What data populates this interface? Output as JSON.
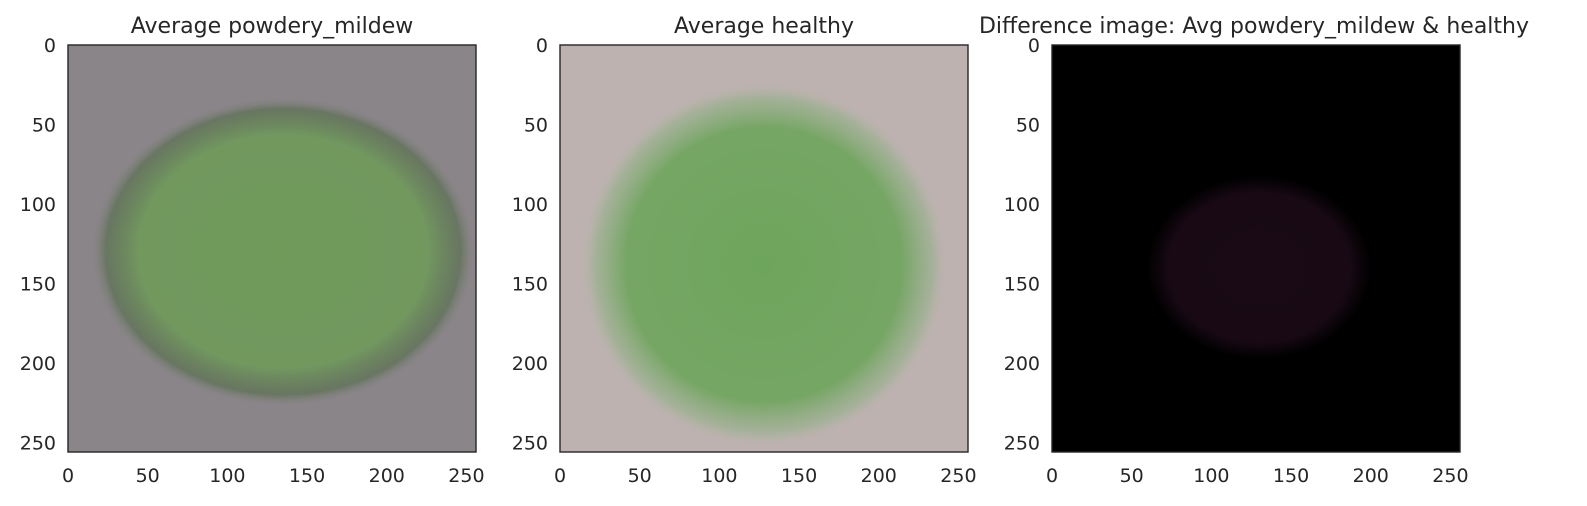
{
  "chart_data": [
    {
      "type": "heatmap",
      "title": "Average powdery_mildew",
      "xlabel": "",
      "ylabel": "",
      "xlim": [
        0,
        256
      ],
      "ylim": [
        256,
        0
      ],
      "x_ticks": [
        "0",
        "50",
        "100",
        "150",
        "200",
        "250"
      ],
      "y_ticks": [
        "0",
        "50",
        "100",
        "150",
        "200",
        "250"
      ],
      "grid": false,
      "image": {
        "background": "#8a8589",
        "leaf_color": "#6f9a5a",
        "leaf_edge": "#5a7050",
        "leaf_center": [
          135,
          130
        ],
        "leaf_radii": [
          110,
          85
        ]
      }
    },
    {
      "type": "heatmap",
      "title": "Average healthy",
      "xlabel": "",
      "ylabel": "",
      "xlim": [
        0,
        256
      ],
      "ylim": [
        256,
        0
      ],
      "x_ticks": [
        "0",
        "50",
        "100",
        "150",
        "200",
        "250"
      ],
      "y_ticks": [
        "0",
        "50",
        "100",
        "150",
        "200",
        "250"
      ],
      "grid": false,
      "image": {
        "background": "#bdb2b0",
        "leaf_color": "#6ea55c",
        "leaf_edge": "#9cb191",
        "leaf_center": [
          128,
          138
        ],
        "leaf_radii": [
          105,
          100
        ]
      }
    },
    {
      "type": "heatmap",
      "title": "Difference image: Avg powdery_mildew & healthy",
      "xlabel": "",
      "ylabel": "",
      "xlim": [
        0,
        256
      ],
      "ylim": [
        256,
        0
      ],
      "x_ticks": [
        "0",
        "50",
        "100",
        "150",
        "200",
        "250"
      ],
      "y_ticks": [
        "0",
        "50",
        "100",
        "150",
        "200",
        "250"
      ],
      "grid": false,
      "image": {
        "background": "#000000",
        "leaf_color": "#1a0a16",
        "leaf_edge": "#000000",
        "leaf_center": [
          130,
          140
        ],
        "leaf_radii": [
          70,
          55
        ]
      }
    }
  ]
}
